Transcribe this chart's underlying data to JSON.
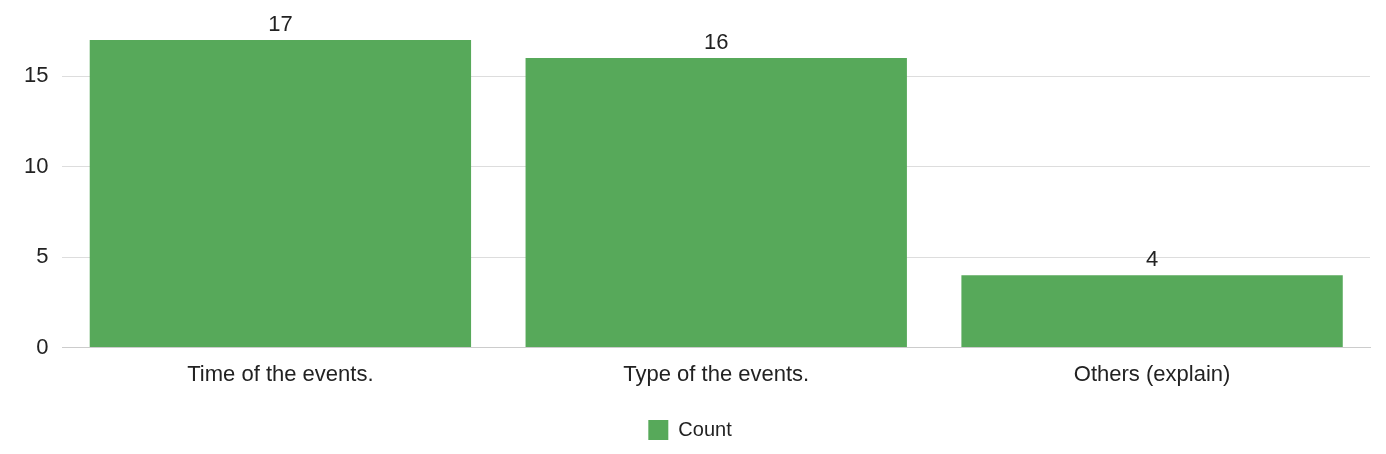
{
  "chart_data": {
    "type": "bar",
    "categories": [
      "Time of the events.",
      "Type of the events.",
      "Others (explain)"
    ],
    "series": [
      {
        "name": "Count",
        "color": "#57a95a",
        "values": [
          17,
          16,
          4
        ]
      }
    ],
    "ylim": [
      0,
      17
    ],
    "yticks": [
      0,
      5,
      10,
      15
    ],
    "grid": "y",
    "legend": "bottom",
    "data_labels": true
  }
}
